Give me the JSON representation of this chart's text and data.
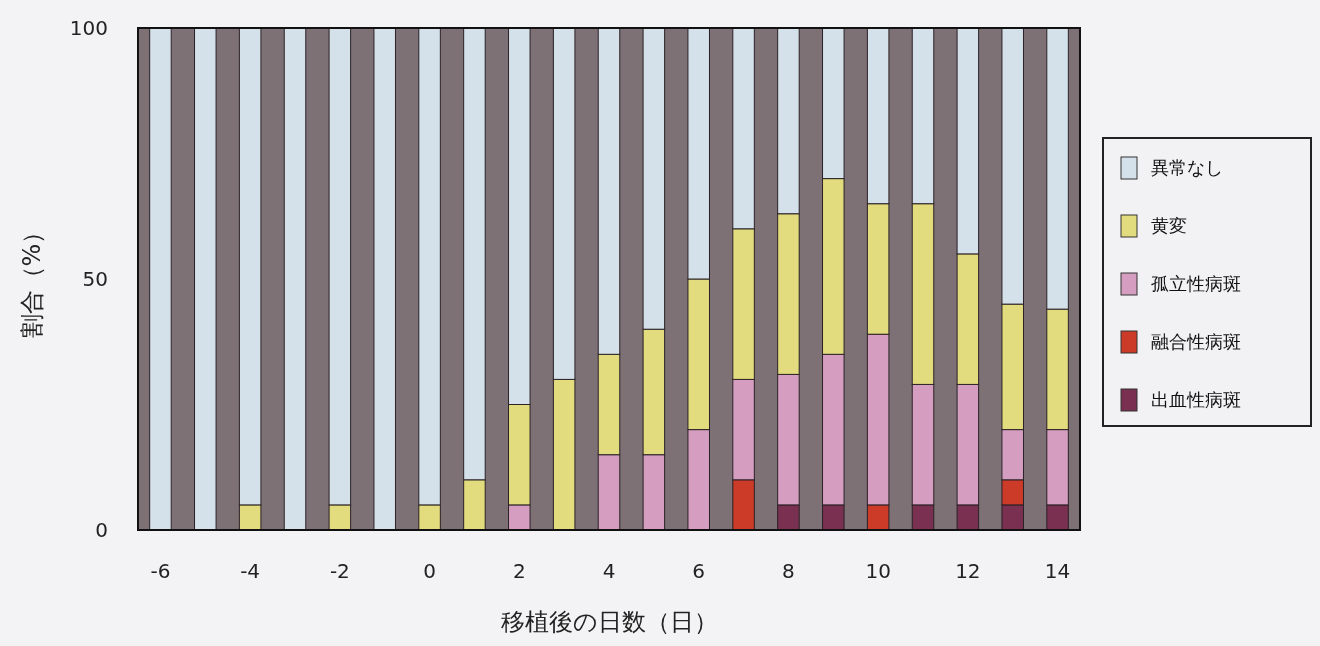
{
  "chart_data": {
    "type": "bar",
    "stacked": true,
    "xlabel": "移植後の日数（日）",
    "ylabel": "割合（%）",
    "categories": [
      "-6",
      null,
      "-4",
      null,
      "-2",
      null,
      "0",
      null,
      "2",
      null,
      "4",
      null,
      "6",
      null,
      "8",
      null,
      "10",
      null,
      "12",
      null,
      "14"
    ],
    "series": [
      {
        "name": "出血性病斑",
        "color": "#7a3050",
        "values": [
          0,
          0,
          0,
          0,
          0,
          0,
          0,
          0,
          0,
          0,
          0,
          0,
          0,
          0,
          5,
          5,
          0,
          5,
          5,
          5,
          5
        ]
      },
      {
        "name": "融合性病斑",
        "color": "#cc3a28",
        "values": [
          0,
          0,
          0,
          0,
          0,
          0,
          0,
          0,
          0,
          0,
          0,
          0,
          0,
          10,
          0,
          0,
          5,
          0,
          0,
          5,
          0
        ]
      },
      {
        "name": "孤立性病斑",
        "color": "#d59ec0",
        "values": [
          0,
          0,
          0,
          0,
          0,
          0,
          0,
          0,
          5,
          0,
          15,
          15,
          20,
          20,
          26,
          30,
          34,
          24,
          24,
          10,
          15
        ]
      },
      {
        "name": "黄変",
        "color": "#e3dc7e",
        "values": [
          0,
          0,
          5,
          0,
          5,
          0,
          5,
          10,
          20,
          30,
          20,
          25,
          30,
          30,
          32,
          35,
          26,
          36,
          26,
          25,
          24
        ]
      },
      {
        "name": "異常なし",
        "color": "#d5e1ea",
        "values": [
          100,
          100,
          95,
          100,
          95,
          100,
          95,
          90,
          75,
          70,
          65,
          60,
          50,
          40,
          37,
          30,
          35,
          35,
          45,
          55,
          56
        ]
      }
    ],
    "ylim": [
      0,
      100
    ],
    "yticks": [
      0,
      50,
      100
    ],
    "legend": "right",
    "grid": false
  }
}
